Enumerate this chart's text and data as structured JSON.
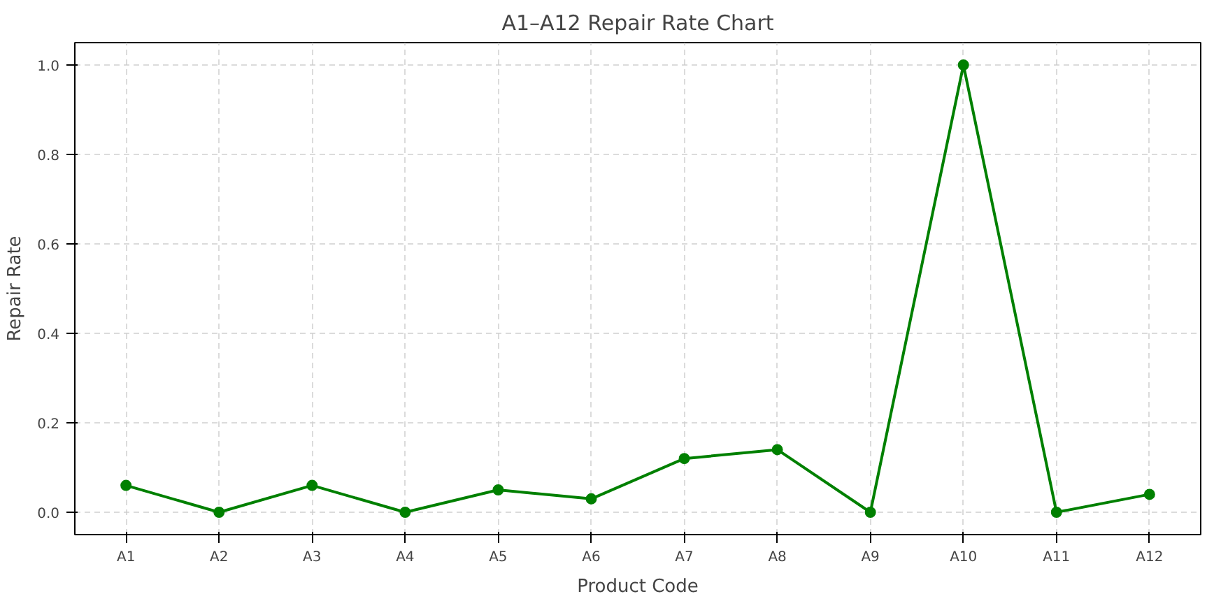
{
  "chart_data": {
    "type": "line",
    "title": "A1–A12 Repair Rate Chart",
    "xlabel": "Product Code",
    "ylabel": "Repair Rate",
    "categories": [
      "A1",
      "A2",
      "A3",
      "A4",
      "A5",
      "A6",
      "A7",
      "A8",
      "A9",
      "A10",
      "A11",
      "A12"
    ],
    "series": [
      {
        "color": "#008000",
        "values": [
          0.06,
          0,
          0.06,
          0,
          0.05,
          0.03,
          0.12,
          0.14,
          0,
          1.0,
          0,
          0.04
        ]
      }
    ],
    "ylim": [
      -0.05,
      1.05
    ],
    "yticks": [
      {
        "value": 0,
        "label": "0.0"
      },
      {
        "value": 0.2,
        "label": "0.2"
      },
      {
        "value": 0.4,
        "label": "0.4"
      },
      {
        "value": 0.6,
        "label": "0.6"
      },
      {
        "value": 0.8,
        "label": "0.8"
      },
      {
        "value": 1.0,
        "label": "1.0"
      }
    ],
    "grid": true,
    "marker": "circle",
    "line_style": "solid"
  }
}
